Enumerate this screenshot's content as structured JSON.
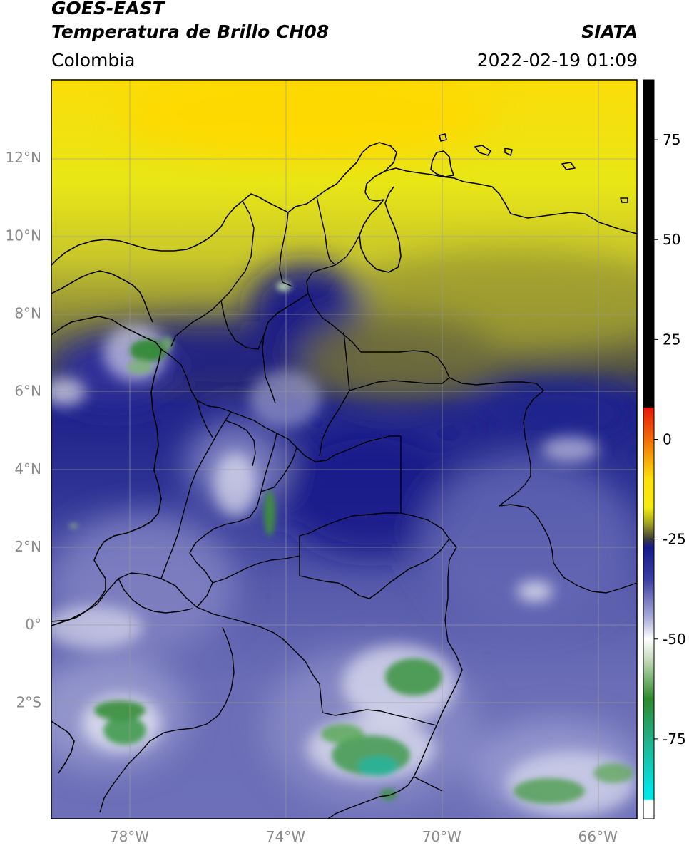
{
  "header": {
    "satellite": "GOES-EAST",
    "product": "Temperatura de Brillo CH08",
    "agency": "SIATA",
    "region": "Colombia",
    "timestamp": "2022-02-19 01:09"
  },
  "map": {
    "projection": "PlateCarree",
    "lon_range": [
      -80,
      -65
    ],
    "lat_range": [
      -5,
      14
    ],
    "lat_ticks": [
      {
        "value": 12,
        "label": "12°N"
      },
      {
        "value": 10,
        "label": "10°N"
      },
      {
        "value": 8,
        "label": "8°N"
      },
      {
        "value": 6,
        "label": "6°N"
      },
      {
        "value": 4,
        "label": "4°N"
      },
      {
        "value": 2,
        "label": "2°N"
      },
      {
        "value": 0,
        "label": "0°"
      },
      {
        "value": -2,
        "label": "2°S"
      }
    ],
    "lon_ticks": [
      {
        "value": -78,
        "label": "78°W"
      },
      {
        "value": -74,
        "label": "74°W"
      },
      {
        "value": -70,
        "label": "70°W"
      },
      {
        "value": -66,
        "label": "66°W"
      }
    ],
    "gridlines": true
  },
  "colorbar": {
    "range": [
      -95,
      90
    ],
    "ticks": [
      {
        "value": 75,
        "label": "75"
      },
      {
        "value": 50,
        "label": "50"
      },
      {
        "value": 25,
        "label": "25"
      },
      {
        "value": 0,
        "label": "0"
      },
      {
        "value": -25,
        "label": "-25"
      },
      {
        "value": -50,
        "label": "-50"
      },
      {
        "value": -75,
        "label": "-75"
      }
    ],
    "stops": [
      {
        "value": 90,
        "color": "#000000"
      },
      {
        "value": 8,
        "color": "#000000"
      },
      {
        "value": 7.9,
        "color": "#e8160c"
      },
      {
        "value": 0,
        "color": "#f06d08"
      },
      {
        "value": -10,
        "color": "#fde20a"
      },
      {
        "value": -17,
        "color": "#f4ec10"
      },
      {
        "value": -21,
        "color": "#a4a420"
      },
      {
        "value": -25,
        "color": "#3c3c3c"
      },
      {
        "value": -27,
        "color": "#151a8a"
      },
      {
        "value": -35,
        "color": "#3a3fa2"
      },
      {
        "value": -45,
        "color": "#aeb1da"
      },
      {
        "value": -50,
        "color": "#ffffff"
      },
      {
        "value": -55,
        "color": "#c8dcbe"
      },
      {
        "value": -65,
        "color": "#2e8a2e"
      },
      {
        "value": -75,
        "color": "#22b088"
      },
      {
        "value": -88,
        "color": "#00e6e6"
      },
      {
        "value": -90,
        "color": "#00e6e6"
      },
      {
        "value": -90.5,
        "color": "#ffffff"
      },
      {
        "value": -95,
        "color": "#ffffff"
      }
    ]
  }
}
